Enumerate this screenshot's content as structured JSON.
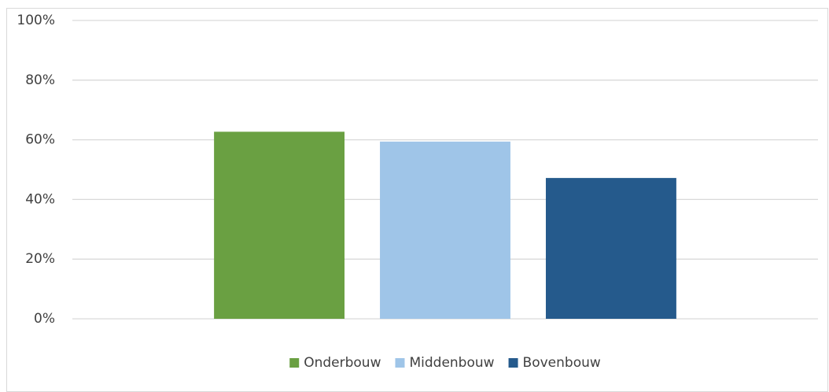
{
  "chart_data": {
    "type": "bar",
    "categories": [
      null
    ],
    "series": [
      {
        "name": "Onderbouw",
        "color": "#6aa042",
        "values": [
          62.7
        ]
      },
      {
        "name": "Middenbouw",
        "color": "#9fc5e8",
        "values": [
          59.4
        ]
      },
      {
        "name": "Bovenbouw",
        "color": "#255a8c",
        "values": [
          47.2
        ]
      }
    ],
    "ylim": [
      0,
      100
    ],
    "yticks": [
      {
        "value": 0,
        "label": "0%"
      },
      {
        "value": 20,
        "label": "20%"
      },
      {
        "value": 40,
        "label": "40%"
      },
      {
        "value": 60,
        "label": "60%"
      },
      {
        "value": 80,
        "label": "80%"
      },
      {
        "value": 100,
        "label": "100%"
      }
    ],
    "grid": true,
    "legend": "bottom"
  }
}
